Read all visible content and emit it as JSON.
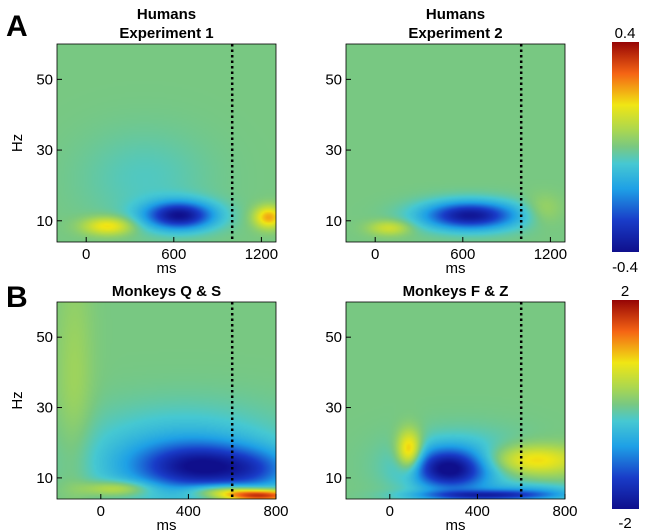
{
  "panel_labels": {
    "a": "A",
    "b": "B"
  },
  "colorbar": {
    "top": {
      "max_label": "0.4",
      "min_label": "-0.4"
    },
    "bottom": {
      "max_label": "2",
      "min_label": "-2"
    }
  },
  "chart_data": [
    {
      "type": "heatmap",
      "panel": "A",
      "title": [
        "Humans",
        "Experiment 1"
      ],
      "xlabel": "ms",
      "ylabel": "Hz",
      "xlim": [
        -200,
        1300
      ],
      "ylim": [
        4,
        60
      ],
      "xticks": [
        0,
        600,
        1200
      ],
      "yticks": [
        10,
        30,
        50
      ],
      "clim": [
        -0.4,
        0.4
      ],
      "event_marker_ms": 1000,
      "blobs": [
        {
          "x": 640,
          "y": 11.5,
          "sx": 170,
          "sy": 2.8,
          "v": -0.38
        },
        {
          "x": 150,
          "y": 8.5,
          "sx": 120,
          "sy": 1.8,
          "v": 0.18
        },
        {
          "x": 1250,
          "y": 11,
          "sx": 70,
          "sy": 2.2,
          "v": 0.22
        },
        {
          "x": 400,
          "y": 22,
          "sx": 300,
          "sy": 9,
          "v": -0.05
        }
      ]
    },
    {
      "type": "heatmap",
      "panel": "A",
      "title": [
        "Humans",
        "Experiment 2"
      ],
      "xlabel": "ms",
      "ylabel": "",
      "xlim": [
        -200,
        1300
      ],
      "ylim": [
        4,
        60
      ],
      "xticks": [
        0,
        600,
        1200
      ],
      "yticks": [
        10,
        30,
        50
      ],
      "clim": [
        -0.4,
        0.4
      ],
      "event_marker_ms": 1000,
      "blobs": [
        {
          "x": 650,
          "y": 11.5,
          "sx": 230,
          "sy": 2.8,
          "v": -0.38
        },
        {
          "x": 100,
          "y": 8,
          "sx": 100,
          "sy": 1.5,
          "v": 0.12
        },
        {
          "x": 1150,
          "y": 13,
          "sx": 90,
          "sy": 3,
          "v": 0.06
        }
      ]
    },
    {
      "type": "heatmap",
      "panel": "B",
      "title": [
        "Monkeys Q & S"
      ],
      "xlabel": "ms",
      "ylabel": "Hz",
      "xlim": [
        -200,
        800
      ],
      "ylim": [
        4,
        60
      ],
      "xticks": [
        0,
        400,
        800
      ],
      "yticks": [
        10,
        30,
        50
      ],
      "clim": [
        -2,
        2
      ],
      "event_marker_ms": 600,
      "blobs": [
        {
          "x": 460,
          "y": 13,
          "sx": 200,
          "sy": 4.5,
          "v": -1.4
        },
        {
          "x": 380,
          "y": 16,
          "sx": 320,
          "sy": 9,
          "v": -0.7
        },
        {
          "x": 720,
          "y": 12,
          "sx": 120,
          "sy": 4,
          "v": -0.5
        },
        {
          "x": 80,
          "y": 7,
          "sx": 110,
          "sy": 1.5,
          "v": 0.7
        },
        {
          "x": 720,
          "y": 5,
          "sx": 130,
          "sy": 1.2,
          "v": 2.0
        },
        {
          "x": 560,
          "y": 6.5,
          "sx": 120,
          "sy": 1.2,
          "v": 0.8
        },
        {
          "x": -120,
          "y": 35,
          "sx": 60,
          "sy": 25,
          "v": 0.25
        }
      ]
    },
    {
      "type": "heatmap",
      "panel": "B",
      "title": [
        "Monkeys F & Z"
      ],
      "xlabel": "ms",
      "ylabel": "",
      "xlim": [
        -200,
        800
      ],
      "ylim": [
        4,
        60
      ],
      "xticks": [
        0,
        400,
        800
      ],
      "yticks": [
        10,
        30,
        50
      ],
      "clim": [
        -2,
        2
      ],
      "event_marker_ms": 600,
      "blobs": [
        {
          "x": 270,
          "y": 12.5,
          "sx": 120,
          "sy": 4,
          "v": -1.6
        },
        {
          "x": 330,
          "y": 14,
          "sx": 200,
          "sy": 6,
          "v": -0.6
        },
        {
          "x": 90,
          "y": 17.5,
          "sx": 40,
          "sy": 4,
          "v": 1.3
        },
        {
          "x": 640,
          "y": 15,
          "sx": 160,
          "sy": 3,
          "v": 1.0
        },
        {
          "x": 450,
          "y": 5,
          "sx": 220,
          "sy": 1,
          "v": -1.4
        },
        {
          "x": 650,
          "y": 6.5,
          "sx": 170,
          "sy": 1.5,
          "v": -0.5
        }
      ]
    }
  ]
}
